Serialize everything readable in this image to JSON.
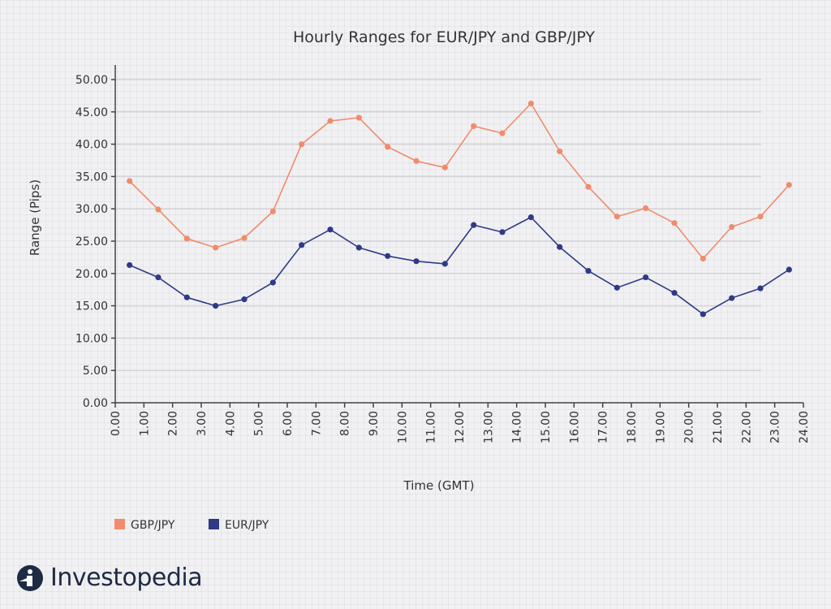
{
  "brand": {
    "name": "Investopedia",
    "logo_icon": "investopedia-logo-icon"
  },
  "colors": {
    "gbp": "#f08c6c",
    "eur": "#2e3a87",
    "grid": "#d4d4d8",
    "axis": "#444444"
  },
  "chart_data": {
    "type": "line",
    "title": "Hourly Ranges for EUR/JPY and GBP/JPY",
    "xlabel": "Time (GMT)",
    "ylabel": "Range (Pips)",
    "xlim": [
      0,
      24
    ],
    "ylim": [
      0,
      50
    ],
    "x_ticks": [
      "0.00",
      "1.00",
      "2.00",
      "3.00",
      "4.00",
      "5.00",
      "6.00",
      "7.00",
      "8.00",
      "9.00",
      "10.00",
      "11.00",
      "12.00",
      "13.00",
      "14.00",
      "15.00",
      "16.00",
      "17.00",
      "18.00",
      "19.00",
      "20.00",
      "21.00",
      "22.00",
      "23.00",
      "24.00"
    ],
    "y_ticks": [
      "0.00",
      "5.00",
      "10.00",
      "15.00",
      "20.00",
      "25.00",
      "30.00",
      "35.00",
      "40.00",
      "45.00",
      "50.00"
    ],
    "grid": true,
    "legend_position": "bottom-left",
    "x": [
      0.5,
      1.5,
      2.5,
      3.5,
      4.5,
      5.5,
      6.5,
      7.5,
      8.5,
      9.5,
      10.5,
      11.5,
      12.5,
      13.5,
      14.5,
      15.5,
      16.5,
      17.5,
      18.5,
      19.5,
      20.5,
      21.5,
      22.5,
      23.5
    ],
    "series": [
      {
        "name": "GBP/JPY",
        "color": "#f08c6c",
        "values": [
          34.3,
          29.9,
          25.4,
          24.0,
          25.5,
          29.6,
          40.0,
          43.6,
          44.1,
          39.6,
          37.4,
          36.4,
          42.8,
          41.7,
          46.3,
          38.9,
          33.4,
          28.8,
          30.1,
          27.8,
          22.3,
          27.2,
          28.8,
          33.7
        ]
      },
      {
        "name": "EUR/JPY",
        "color": "#2e3a87",
        "values": [
          21.3,
          19.4,
          16.3,
          15.0,
          16.0,
          18.6,
          24.4,
          26.8,
          24.0,
          22.7,
          21.9,
          21.5,
          27.5,
          26.4,
          28.7,
          24.1,
          20.4,
          17.8,
          19.4,
          17.0,
          13.7,
          16.2,
          17.7,
          20.6
        ]
      }
    ]
  }
}
